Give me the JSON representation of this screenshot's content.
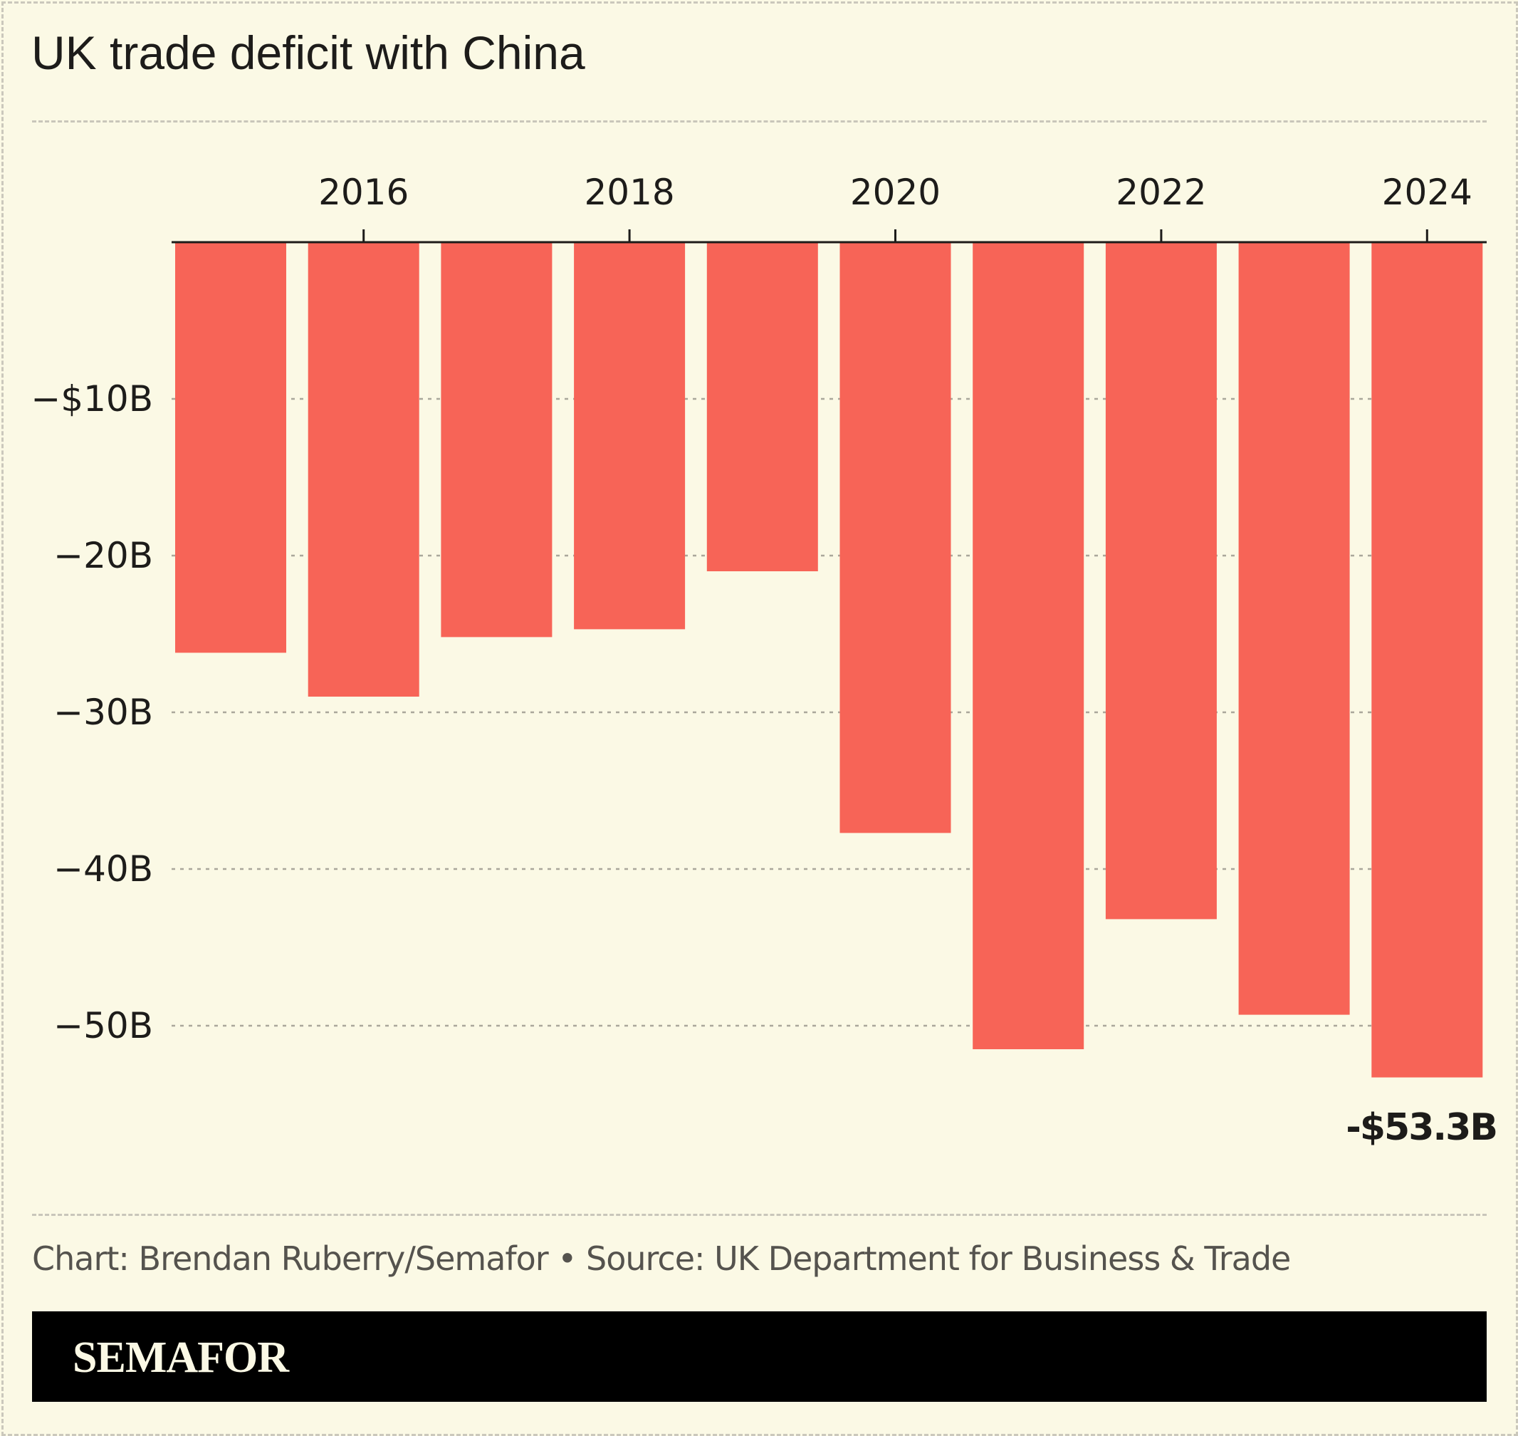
{
  "chart_data": {
    "type": "bar",
    "title": "UK trade deficit with China",
    "categories": [
      "2015",
      "2016",
      "2017",
      "2018",
      "2019",
      "2020",
      "2021",
      "2022",
      "2023",
      "2024"
    ],
    "values": [
      -26.2,
      -29.0,
      -25.2,
      -24.7,
      -21.0,
      -37.7,
      -51.5,
      -43.2,
      -49.3,
      -53.3
    ],
    "x_tick_labels": [
      "2016",
      "2018",
      "2020",
      "2022",
      "2024"
    ],
    "y_ticks": [
      -10,
      -20,
      -30,
      -40,
      -50
    ],
    "y_tick_labels": [
      "−$10B",
      "−20B",
      "−30B",
      "−40B",
      "−50B"
    ],
    "ylim": [
      -57,
      0
    ],
    "grid": true,
    "bar_color": "#f76457",
    "annotation": "-$53.3B"
  },
  "footer": "Chart: Brendan Ruberry/Semafor • Source: UK Department for Business & Trade",
  "brand": "SEMAFOR"
}
